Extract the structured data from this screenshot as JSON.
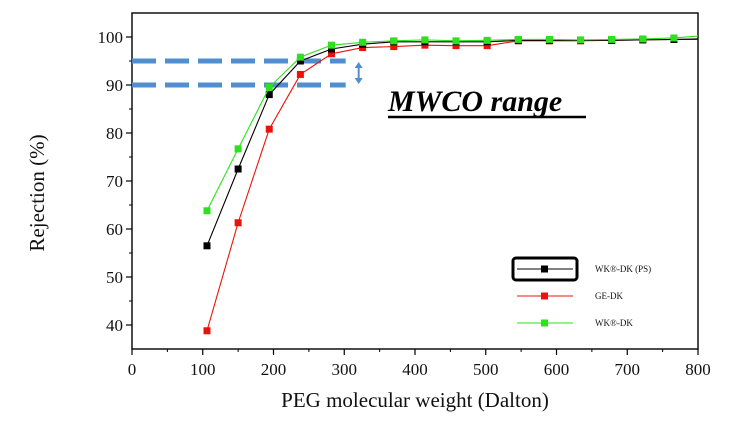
{
  "chart_data": {
    "type": "line",
    "title": "",
    "xlabel": "PEG molecular weight (Dalton)",
    "ylabel": "Rejection (%)",
    "xlim": [
      0,
      800
    ],
    "ylim": [
      35,
      105
    ],
    "xticks": [
      0,
      100,
      200,
      300,
      400,
      500,
      600,
      700,
      800
    ],
    "yticks": [
      40,
      50,
      60,
      70,
      80,
      90,
      100
    ],
    "xtick_labels": [
      "0",
      "100",
      "200",
      "300",
      "400",
      "500",
      "600",
      "700",
      "800"
    ],
    "ytick_labels": [
      "40",
      "50",
      "60",
      "70",
      "80",
      "90",
      "100"
    ],
    "annotation": "MWCO range",
    "mwco_band": [
      90,
      95
    ],
    "legend_position": "bottom-right",
    "series": [
      {
        "name": "WK®-DK (PS)",
        "color": "#000000",
        "x": [
          106,
          150,
          194,
          238,
          282,
          326,
          370,
          414,
          458,
          502,
          546,
          590,
          634,
          678,
          722,
          766,
          800
        ],
        "y": [
          56.5,
          72.5,
          88,
          95,
          97.5,
          98.5,
          99,
          99,
          99,
          99,
          99.3,
          99.3,
          99.3,
          99.3,
          99.4,
          99.5,
          99.6
        ]
      },
      {
        "name": "GE-DK",
        "color": "#e8140c",
        "x": [
          106,
          150,
          194,
          238,
          282,
          326,
          370,
          414,
          458,
          502,
          546,
          590,
          634,
          678,
          722,
          766,
          800
        ],
        "y": [
          38.8,
          61.3,
          80.8,
          92.2,
          96.5,
          97.8,
          98,
          98.3,
          98.2,
          98.2,
          99.2,
          99.2,
          99.2,
          99.3,
          99.4,
          99.5,
          99.5
        ]
      },
      {
        "name": "WK®-DK",
        "color": "#2ee01e",
        "x": [
          106,
          150,
          194,
          238,
          282,
          326,
          370,
          414,
          458,
          502,
          546,
          590,
          634,
          678,
          722,
          766,
          800
        ],
        "y": [
          63.8,
          76.7,
          89.5,
          95.8,
          98.3,
          98.9,
          99.2,
          99.4,
          99.2,
          99.3,
          99.5,
          99.5,
          99.4,
          99.5,
          99.6,
          99.8,
          100.2
        ]
      }
    ]
  }
}
